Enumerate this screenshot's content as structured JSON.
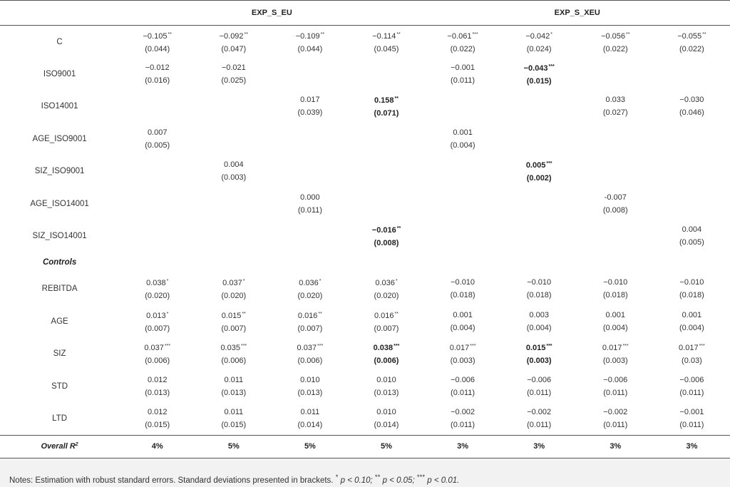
{
  "table": {
    "group_headers": [
      "EXP_S_EU",
      "EXP_S_XEU"
    ],
    "rows": [
      {
        "label": "C",
        "cells": [
          {
            "coef": "−0.105",
            "stars": "**",
            "se": "(0.044)"
          },
          {
            "coef": "−0.092",
            "stars": "**",
            "se": "(0.047)"
          },
          {
            "coef": "−0.109",
            "stars": "**",
            "se": "(0.044)"
          },
          {
            "coef": "−0.114",
            "stars": "**",
            "se": "(0.045)"
          },
          {
            "coef": "−0.061",
            "stars": "***",
            "se": "(0.022)"
          },
          {
            "coef": "−0.042",
            "stars": "*",
            "se": "(0.024)"
          },
          {
            "coef": "−0.056",
            "stars": "**",
            "se": "(0.022)"
          },
          {
            "coef": "−0.055",
            "stars": "**",
            "se": "(0.022)"
          }
        ]
      },
      {
        "label": "ISO9001",
        "cells": [
          {
            "coef": "−0.012",
            "stars": "",
            "se": "(0.016)"
          },
          {
            "coef": "−0.021",
            "stars": "",
            "se": "(0.025)"
          },
          null,
          null,
          {
            "coef": "−0.001",
            "stars": "",
            "se": "(0.011)"
          },
          {
            "coef": "−0.043",
            "stars": "***",
            "se": "(0.015)",
            "bold": true
          },
          null,
          null
        ]
      },
      {
        "label": "ISO14001",
        "cells": [
          null,
          null,
          {
            "coef": "0.017",
            "stars": "",
            "se": "(0.039)"
          },
          {
            "coef": "0.158",
            "stars": "**",
            "se": "(0.071)",
            "bold": true
          },
          null,
          null,
          {
            "coef": "0.033",
            "stars": "",
            "se": "(0.027)"
          },
          {
            "coef": "−0.030",
            "stars": "",
            "se": "(0.046)"
          }
        ]
      },
      {
        "label": "AGE_ISO9001",
        "cells": [
          {
            "coef": "0.007",
            "stars": "",
            "se": "(0.005)"
          },
          null,
          null,
          null,
          {
            "coef": "0.001",
            "stars": "",
            "se": "(0.004)"
          },
          null,
          null,
          null
        ]
      },
      {
        "label": "SIZ_ISO9001",
        "cells": [
          null,
          {
            "coef": "0.004",
            "stars": "",
            "se": "(0.003)"
          },
          null,
          null,
          null,
          {
            "coef": "0.005",
            "stars": "***",
            "se": "(0.002)",
            "bold": true
          },
          null,
          null
        ]
      },
      {
        "label": "AGE_ISO14001",
        "cells": [
          null,
          null,
          {
            "coef": "0.000",
            "stars": "",
            "se": "(0.011)"
          },
          null,
          null,
          null,
          {
            "coef": "-0.007",
            "stars": "",
            "se": "(0.008)"
          },
          null
        ]
      },
      {
        "label": "SIZ_ISO14001",
        "cells": [
          null,
          null,
          null,
          {
            "coef": "−0.016",
            "stars": "**",
            "se": "(0.008)",
            "bold": true
          },
          null,
          null,
          null,
          {
            "coef": "0.004",
            "stars": "",
            "se": "(0.005)"
          }
        ]
      }
    ],
    "controls_label": "Controls",
    "control_rows": [
      {
        "label": "REBITDA",
        "cells": [
          {
            "coef": "0.038",
            "stars": "*",
            "se": "(0.020)"
          },
          {
            "coef": "0.037",
            "stars": "*",
            "se": "(0.020)"
          },
          {
            "coef": "0.036",
            "stars": "*",
            "se": "(0.020)"
          },
          {
            "coef": "0.036",
            "stars": "*",
            "se": "(0.020)"
          },
          {
            "coef": "−0.010",
            "stars": "",
            "se": "(0.018)"
          },
          {
            "coef": "−0.010",
            "stars": "",
            "se": "(0.018)"
          },
          {
            "coef": "−0.010",
            "stars": "",
            "se": "(0.018)"
          },
          {
            "coef": "−0.010",
            "stars": "",
            "se": "(0.018)"
          }
        ]
      },
      {
        "label": "AGE",
        "cells": [
          {
            "coef": "0.013",
            "stars": "*",
            "se": "(0.007)"
          },
          {
            "coef": "0.015",
            "stars": "**",
            "se": "(0.007)"
          },
          {
            "coef": "0.016",
            "stars": "**",
            "se": "(0.007)"
          },
          {
            "coef": "0.016",
            "stars": "**",
            "se": "(0.007)"
          },
          {
            "coef": "0.001",
            "stars": "",
            "se": "(0.004)"
          },
          {
            "coef": "0.003",
            "stars": "",
            "se": "(0.004)"
          },
          {
            "coef": "0.001",
            "stars": "",
            "se": "(0.004)"
          },
          {
            "coef": "0.001",
            "stars": "",
            "se": "(0.004)"
          }
        ]
      },
      {
        "label": "SIZ",
        "cells": [
          {
            "coef": "0.037",
            "stars": "***",
            "se": "(0.006)"
          },
          {
            "coef": "0.035",
            "stars": "***",
            "se": "(0.006)"
          },
          {
            "coef": "0.037",
            "stars": "***",
            "se": "(0.006)"
          },
          {
            "coef": "0.038",
            "stars": "***",
            "se": "(0.006)",
            "bold": true
          },
          {
            "coef": "0.017",
            "stars": "***",
            "se": "(0.003)"
          },
          {
            "coef": "0.015",
            "stars": "***",
            "se": "(0.003)",
            "bold": true
          },
          {
            "coef": "0.017",
            "stars": "***",
            "se": "(0.003)"
          },
          {
            "coef": "0.017",
            "stars": "***",
            "se": "(0.03)"
          }
        ]
      },
      {
        "label": "STD",
        "cells": [
          {
            "coef": "0.012",
            "stars": "",
            "se": "(0.013)"
          },
          {
            "coef": "0.011",
            "stars": "",
            "se": "(0.013)"
          },
          {
            "coef": "0.010",
            "stars": "",
            "se": "(0.013)"
          },
          {
            "coef": "0.010",
            "stars": "",
            "se": "(0.013)"
          },
          {
            "coef": "−0.006",
            "stars": "",
            "se": "(0.011)"
          },
          {
            "coef": "−0.006",
            "stars": "",
            "se": "(0.011)"
          },
          {
            "coef": "−0.006",
            "stars": "",
            "se": "(0.011)"
          },
          {
            "coef": "−0.006",
            "stars": "",
            "se": "(0.011)"
          }
        ]
      },
      {
        "label": "LTD",
        "cells": [
          {
            "coef": "0.012",
            "stars": "",
            "se": "(0.015)"
          },
          {
            "coef": "0.011",
            "stars": "",
            "se": "(0.015)"
          },
          {
            "coef": "0.011",
            "stars": "",
            "se": "(0.014)"
          },
          {
            "coef": "0.010",
            "stars": "",
            "se": "(0.014)"
          },
          {
            "coef": "−0.002",
            "stars": "",
            "se": "(0.011)"
          },
          {
            "coef": "−0.002",
            "stars": "",
            "se": "(0.011)"
          },
          {
            "coef": "−0.002",
            "stars": "",
            "se": "(0.011)"
          },
          {
            "coef": "−0.001",
            "stars": "",
            "se": "(0.011)"
          }
        ]
      }
    ],
    "r2": {
      "label": "Overall R",
      "label_sup": "2",
      "values": [
        "4%",
        "5%",
        "5%",
        "5%",
        "3%",
        "3%",
        "3%",
        "3%"
      ]
    }
  },
  "notes": {
    "prefix": "Notes: Estimation with robust standard errors. Standard deviations presented in brackets. ",
    "s1": "*",
    "p1": " p < 0.10; ",
    "s2": "**",
    "p2": " p < 0.05; ",
    "s3": "***",
    "p3": " p < 0.01."
  }
}
